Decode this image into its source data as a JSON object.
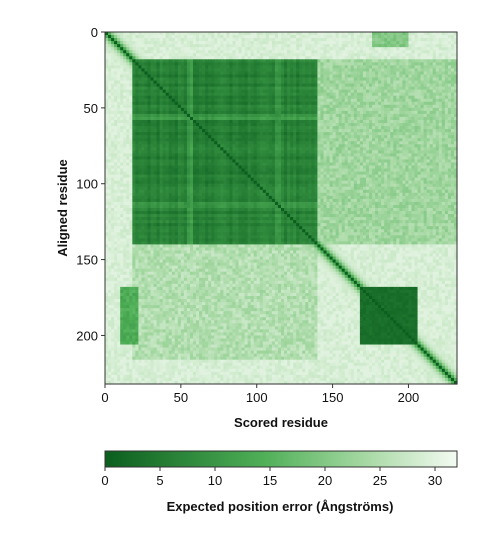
{
  "chart_data": {
    "type": "heatmap",
    "title": "",
    "xlabel": "Scored residue",
    "ylabel": "Aligned residue",
    "n_residues": 232,
    "xlim": [
      0,
      232
    ],
    "ylim": [
      232,
      0
    ],
    "x_ticks": [
      0,
      50,
      100,
      150,
      200
    ],
    "y_ticks": [
      0,
      50,
      100,
      150,
      200
    ],
    "colorbar": {
      "label": "Expected position error (Ångströms)",
      "range": [
        0,
        32
      ],
      "ticks": [
        0,
        5,
        10,
        15,
        20,
        25,
        30
      ],
      "color_low": "#0b5e1e",
      "color_mid": "#4faf57",
      "color_high": "#f4fbf3"
    },
    "regions": [
      {
        "name": "domain-1",
        "start": 18,
        "end": 140,
        "pae": 3
      },
      {
        "name": "domain-2",
        "start": 168,
        "end": 205,
        "pae": 3
      },
      {
        "name": "diagonal",
        "pae": 0
      },
      {
        "name": "background",
        "pae": 29
      }
    ]
  }
}
